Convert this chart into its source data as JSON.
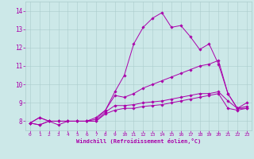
{
  "xlabel": "Windchill (Refroidissement éolien,°C)",
  "bg_color": "#cce8e8",
  "line_color": "#aa00aa",
  "grid_color": "#aacccc",
  "xlim": [
    -0.5,
    23.5
  ],
  "ylim": [
    7.5,
    14.5
  ],
  "yticks": [
    8,
    9,
    10,
    11,
    12,
    13,
    14
  ],
  "xticks": [
    0,
    1,
    2,
    3,
    4,
    5,
    6,
    7,
    8,
    9,
    10,
    11,
    12,
    13,
    14,
    15,
    16,
    17,
    18,
    19,
    20,
    21,
    22,
    23
  ],
  "line1": [
    7.9,
    8.2,
    8.0,
    7.8,
    8.0,
    8.0,
    8.0,
    8.1,
    8.6,
    9.6,
    10.5,
    12.2,
    13.1,
    13.6,
    13.9,
    13.1,
    13.2,
    12.6,
    11.9,
    12.2,
    11.1,
    9.5,
    8.7,
    8.8
  ],
  "line2": [
    7.9,
    8.2,
    8.0,
    8.0,
    8.0,
    8.0,
    8.0,
    8.2,
    8.6,
    9.4,
    9.3,
    9.5,
    9.8,
    10.0,
    10.2,
    10.4,
    10.6,
    10.8,
    11.0,
    11.1,
    11.3,
    9.5,
    8.7,
    8.7
  ],
  "line3": [
    7.9,
    7.8,
    8.0,
    8.0,
    8.0,
    8.0,
    8.0,
    8.0,
    8.5,
    8.85,
    8.85,
    8.9,
    9.0,
    9.05,
    9.1,
    9.2,
    9.3,
    9.4,
    9.5,
    9.5,
    9.6,
    9.1,
    8.7,
    9.0
  ],
  "line4": [
    7.9,
    7.8,
    8.0,
    8.0,
    8.0,
    8.0,
    8.0,
    8.0,
    8.4,
    8.6,
    8.7,
    8.7,
    8.8,
    8.85,
    8.9,
    9.0,
    9.1,
    9.2,
    9.3,
    9.4,
    9.5,
    8.7,
    8.6,
    8.7
  ]
}
